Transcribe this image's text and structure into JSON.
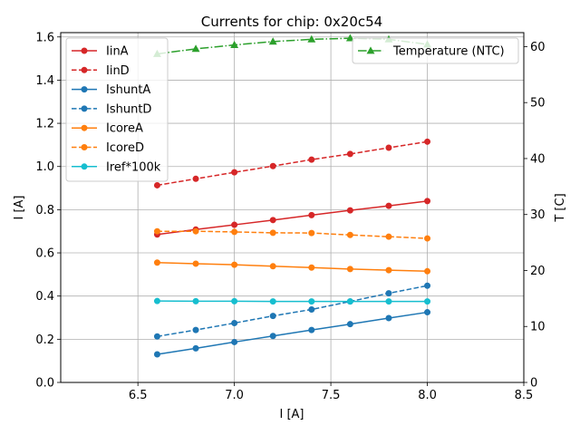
{
  "chart_data": {
    "type": "line",
    "title": "Currents for chip: 0x20c54",
    "xlabel": "I [A]",
    "ylabel": "I [A]",
    "y2label": "T [C]",
    "xlim": [
      6.1,
      8.5
    ],
    "ylim": [
      0.0,
      1.62
    ],
    "y2lim": [
      0,
      62.5
    ],
    "xticks": [
      6.5,
      7.0,
      7.5,
      8.0,
      8.5
    ],
    "xtick_labels": [
      "6.5",
      "7.0",
      "7.5",
      "8.0",
      "8.5"
    ],
    "yticks": [
      0.0,
      0.2,
      0.4,
      0.6,
      0.8,
      1.0,
      1.2,
      1.4,
      1.6
    ],
    "ytick_labels": [
      "0.0",
      "0.2",
      "0.4",
      "0.6",
      "0.8",
      "1.0",
      "1.2",
      "1.4",
      "1.6"
    ],
    "y2ticks": [
      0,
      10,
      20,
      30,
      40,
      50,
      60
    ],
    "y2tick_labels": [
      "0",
      "10",
      "20",
      "30",
      "40",
      "50",
      "60"
    ],
    "grid": true,
    "x": [
      6.6,
      6.8,
      7.0,
      7.2,
      7.4,
      7.6,
      7.8,
      8.0
    ],
    "series": [
      {
        "name": "IinA",
        "color": "#d62728",
        "dash": "solid",
        "marker": "circle",
        "axis": "left",
        "values": [
          0.685,
          0.708,
          0.73,
          0.752,
          0.775,
          0.797,
          0.818,
          0.84
        ]
      },
      {
        "name": "IinD",
        "color": "#d62728",
        "dash": "dashed",
        "marker": "circle",
        "axis": "left",
        "values": [
          0.913,
          0.943,
          0.973,
          1.002,
          1.032,
          1.058,
          1.087,
          1.115
        ]
      },
      {
        "name": "IshuntA",
        "color": "#1f77b4",
        "dash": "solid",
        "marker": "circle",
        "axis": "left",
        "values": [
          0.13,
          0.158,
          0.187,
          0.215,
          0.243,
          0.27,
          0.298,
          0.325
        ]
      },
      {
        "name": "IshuntD",
        "color": "#1f77b4",
        "dash": "dashed",
        "marker": "circle",
        "axis": "left",
        "values": [
          0.213,
          0.243,
          0.275,
          0.308,
          0.338,
          0.375,
          0.413,
          0.448
        ]
      },
      {
        "name": "IcoreA",
        "color": "#ff7f0e",
        "dash": "solid",
        "marker": "circle",
        "axis": "left",
        "values": [
          0.555,
          0.55,
          0.545,
          0.538,
          0.532,
          0.525,
          0.52,
          0.515
        ]
      },
      {
        "name": "IcoreD",
        "color": "#ff7f0e",
        "dash": "dashed",
        "marker": "circle",
        "axis": "left",
        "values": [
          0.7,
          0.7,
          0.697,
          0.693,
          0.692,
          0.683,
          0.675,
          0.667
        ]
      },
      {
        "name": "Iref*100k",
        "color": "#17becf",
        "dash": "solid",
        "marker": "circle",
        "axis": "left",
        "values": [
          0.377,
          0.376,
          0.376,
          0.375,
          0.375,
          0.375,
          0.375,
          0.375
        ]
      },
      {
        "name": "Temperature (NTC)",
        "color": "#2ca02c",
        "dash": "dashdot",
        "marker": "triangle",
        "axis": "right",
        "values": [
          58.7,
          59.6,
          60.3,
          60.9,
          61.3,
          61.5,
          61.3,
          60.4
        ]
      }
    ],
    "legend_left_position": "upper-left",
    "legend_right_position": "upper-right"
  }
}
